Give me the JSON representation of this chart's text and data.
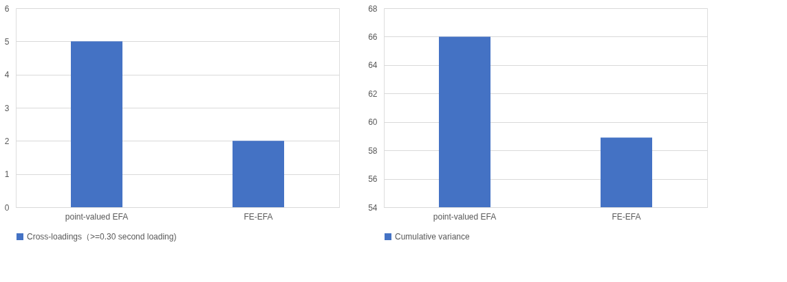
{
  "chart_data": [
    {
      "type": "bar",
      "categories": [
        "point-valued EFA",
        "FE-EFA"
      ],
      "series": [
        {
          "name": "Cross-loadings（>=0.30 second loading)",
          "color": "#4472c4",
          "values": [
            5,
            2
          ]
        }
      ],
      "ylim": [
        0,
        6
      ],
      "yticks": [
        0,
        1,
        2,
        3,
        4,
        5,
        6
      ],
      "grid": "y",
      "legend": "bottom"
    },
    {
      "type": "bar",
      "categories": [
        "point-valued EFA",
        "FE-EFA"
      ],
      "series": [
        {
          "name": "Cumulative variance",
          "color": "#4472c4",
          "values": [
            66,
            58.9
          ]
        }
      ],
      "ylim": [
        54,
        68
      ],
      "yticks": [
        54,
        56,
        58,
        60,
        62,
        64,
        66,
        68
      ],
      "grid": "y",
      "legend": "bottom"
    }
  ]
}
